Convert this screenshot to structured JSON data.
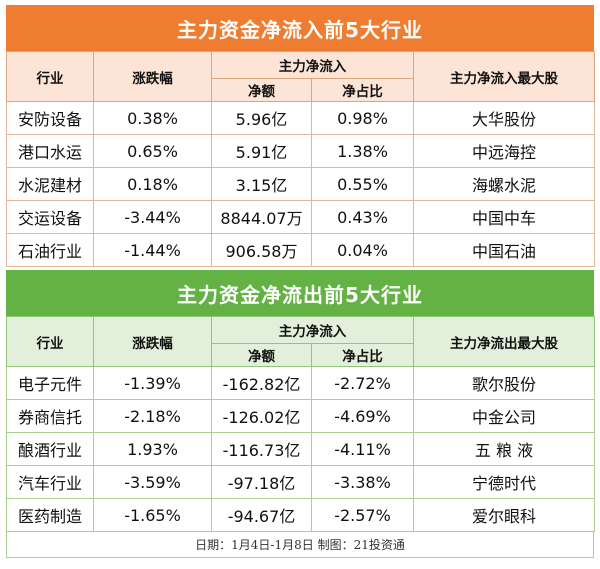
{
  "inflow": {
    "title": "主力资金净流入前5大行业",
    "headers": {
      "industry": "行业",
      "change": "涨跌幅",
      "main_flow": "主力净流入",
      "net_amount": "净额",
      "net_ratio": "净占比",
      "top_stock": "主力净流入最大股"
    },
    "rows": [
      {
        "industry": "安防设备",
        "change": "0.38%",
        "amount": "5.96亿",
        "ratio": "0.98%",
        "stock": "大华股份"
      },
      {
        "industry": "港口水运",
        "change": "0.65%",
        "amount": "5.91亿",
        "ratio": "1.38%",
        "stock": "中远海控"
      },
      {
        "industry": "水泥建材",
        "change": "0.18%",
        "amount": "3.15亿",
        "ratio": "0.55%",
        "stock": "海螺水泥"
      },
      {
        "industry": "交运设备",
        "change": "-3.44%",
        "amount": "8844.07万",
        "ratio": "0.43%",
        "stock": "中国中车"
      },
      {
        "industry": "石油行业",
        "change": "-1.44%",
        "amount": "906.58万",
        "ratio": "0.04%",
        "stock": "中国石油"
      }
    ]
  },
  "outflow": {
    "title": "主力资金净流出前5大行业",
    "headers": {
      "industry": "行业",
      "change": "涨跌幅",
      "main_flow": "主力净流入",
      "net_amount": "净额",
      "net_ratio": "净占比",
      "top_stock": "主力净流出最大股"
    },
    "rows": [
      {
        "industry": "电子元件",
        "change": "-1.39%",
        "amount": "-162.82亿",
        "ratio": "-2.72%",
        "stock": "歌尔股份"
      },
      {
        "industry": "券商信托",
        "change": "-2.18%",
        "amount": "-126.02亿",
        "ratio": "-4.69%",
        "stock": "中金公司"
      },
      {
        "industry": "酿酒行业",
        "change": "1.93%",
        "amount": "-116.73亿",
        "ratio": "-4.11%",
        "stock": "五 粮 液"
      },
      {
        "industry": "汽车行业",
        "change": "-3.59%",
        "amount": "-97.18亿",
        "ratio": "-3.38%",
        "stock": "宁德时代"
      },
      {
        "industry": "医药制造",
        "change": "-1.65%",
        "amount": "-94.67亿",
        "ratio": "-2.57%",
        "stock": "爱尔眼科"
      }
    ]
  },
  "footer": "日期：1月4日-1月8日  制图：21投资通",
  "colors": {
    "inflow_accent": "#ef7d31",
    "inflow_header_bg": "#fce4d6",
    "outflow_accent": "#64b144",
    "outflow_header_bg": "#e2efda"
  }
}
